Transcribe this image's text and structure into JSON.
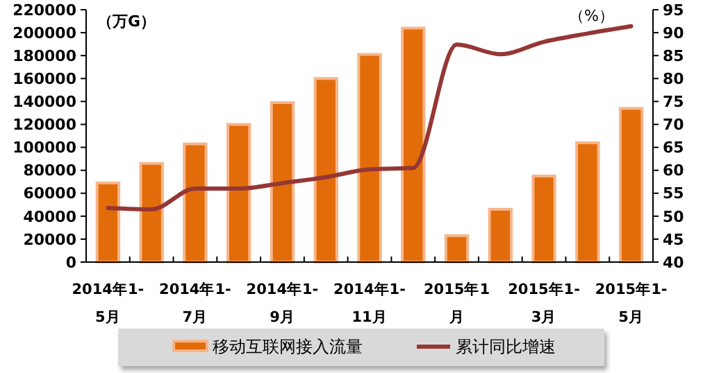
{
  "chart_data": {
    "type": "bar",
    "categories": [
      "2014年1-5月",
      null,
      "2014年1-7月",
      null,
      "2014年1-9月",
      null,
      "2014年1-11月",
      null,
      "2015年1月",
      null,
      "2015年1-3月",
      null,
      "2015年1-5月"
    ],
    "series": [
      {
        "name": "移动互联网接入流量",
        "color": "#e36c0a",
        "values": [
          69000,
          86000,
          103000,
          120000,
          139000,
          160000,
          181000,
          204000,
          23000,
          46000,
          75000,
          104000,
          134000
        ]
      },
      {
        "name": "累计同比增速",
        "type": "line",
        "axis": "y2",
        "color": "#953735",
        "values": [
          51.8,
          51.5,
          56,
          56,
          57.2,
          58.5,
          60.2,
          60.5,
          87.4,
          85.3,
          88,
          89.8,
          91.4
        ]
      }
    ],
    "ylabel": "（万G）",
    "y2label": "（%）",
    "ylim": [
      0,
      220000
    ],
    "yticks": [
      0,
      20000,
      40000,
      60000,
      80000,
      100000,
      120000,
      140000,
      160000,
      180000,
      200000,
      220000
    ],
    "y2lim": [
      40,
      95
    ],
    "y2ticks": [
      40,
      45,
      50,
      55,
      60,
      65,
      70,
      75,
      80,
      85,
      90,
      95
    ],
    "grid": false,
    "legend": "bottom",
    "marker": "none",
    "line_style": "solid"
  }
}
